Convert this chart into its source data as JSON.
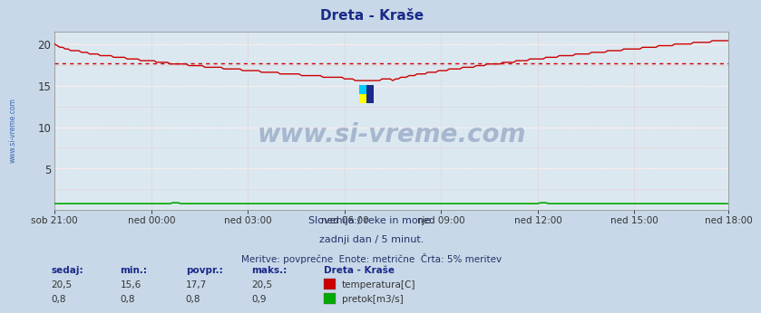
{
  "title": "Dreta - Kraše",
  "bg_color": "#c8d8e8",
  "plot_bg_color": "#dce8f0",
  "grid_h_color": "#ffffff",
  "grid_v_color": "#e8b8b8",
  "temp_color": "#cc0000",
  "flow_color": "#00aa00",
  "avg_line_color": "#cc0000",
  "temp_avg": 17.7,
  "temp_min": 15.6,
  "temp_max": 20.5,
  "flow_avg": 0.8,
  "flow_min": 0.8,
  "flow_max": 0.9,
  "ylim": [
    0,
    21.5
  ],
  "yticks": [
    0,
    5,
    10,
    15,
    20
  ],
  "xlabel_ticks": [
    "sob 21:00",
    "ned 00:00",
    "ned 03:00",
    "ned 06:00",
    "ned 09:00",
    "ned 12:00",
    "ned 15:00",
    "ned 18:00"
  ],
  "subtitle1": "Slovenija / reke in morje.",
  "subtitle2": "zadnji dan / 5 minut.",
  "subtitle3": "Meritve: povprečne  Enote: metrične  Črta: 5% meritev",
  "watermark": "www.si-vreme.com",
  "watermark_color": "#1a3a7a",
  "left_label": "www.si-vreme.com",
  "left_label_color": "#2255aa",
  "legend_title": "Dreta - Kraše",
  "legend_label1": "temperatura[C]",
  "legend_label2": "pretok[m3/s]",
  "table_headers": [
    "sedaj:",
    "min.:",
    "povpr.:",
    "maks.:"
  ],
  "table_row1": [
    "20,5",
    "15,6",
    "17,7",
    "20,5"
  ],
  "table_row2": [
    "0,8",
    "0,8",
    "0,8",
    "0,9"
  ],
  "n_points": 252,
  "tick_positions": [
    0,
    36,
    72,
    108,
    144,
    180,
    216,
    251
  ]
}
